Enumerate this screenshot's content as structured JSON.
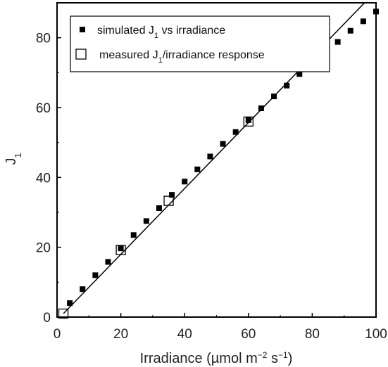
{
  "chart_data": {
    "type": "scatter",
    "xlabel": {
      "main": "Irradiance (µmol m",
      "exp1": "−2",
      "mid": " s",
      "exp2": "−1",
      "end": ")"
    },
    "ylabel": {
      "main": "J",
      "sub": "1"
    },
    "xlim": [
      0,
      100
    ],
    "ylim": [
      0,
      90
    ],
    "xticks": [
      0,
      20,
      40,
      60,
      80,
      100
    ],
    "yticks": [
      0,
      20,
      40,
      60,
      80
    ],
    "grid": false,
    "legend_position": "top-left",
    "series": [
      {
        "name": "simulated J1 vs irradiance",
        "legend": {
          "pre": "simulated J",
          "sub": "1",
          "post": " vs irradiance"
        },
        "marker": "filled-square",
        "color": "#000000",
        "points": [
          [
            4,
            4
          ],
          [
            8,
            8
          ],
          [
            12,
            12
          ],
          [
            16,
            15.8
          ],
          [
            20,
            19.7
          ],
          [
            24,
            23.5
          ],
          [
            28,
            27.5
          ],
          [
            32,
            31.2
          ],
          [
            36,
            35
          ],
          [
            40,
            38.8
          ],
          [
            44,
            42.3
          ],
          [
            48,
            46
          ],
          [
            52,
            49.6
          ],
          [
            56,
            53
          ],
          [
            60,
            56.4
          ],
          [
            64,
            59.8
          ],
          [
            68,
            63.2
          ],
          [
            72,
            66.3
          ],
          [
            76,
            69.6
          ],
          [
            80,
            72.8
          ],
          [
            84,
            75.8
          ],
          [
            88,
            78.8
          ],
          [
            92,
            82
          ],
          [
            96,
            84.7
          ],
          [
            100,
            87.5
          ]
        ]
      },
      {
        "name": "measured J1/irradiance response",
        "legend": {
          "pre": "measured J",
          "sub": "1",
          "post": "/irradiance response"
        },
        "marker": "open-square",
        "color": "#000000",
        "points": [
          [
            2,
            1
          ],
          [
            20,
            19.2
          ],
          [
            35,
            33.3
          ],
          [
            60,
            56
          ]
        ]
      }
    ],
    "reference_line": {
      "style": "solid",
      "color": "#000000",
      "from": [
        2,
        1
      ],
      "to": [
        100,
        93.4
      ]
    }
  }
}
